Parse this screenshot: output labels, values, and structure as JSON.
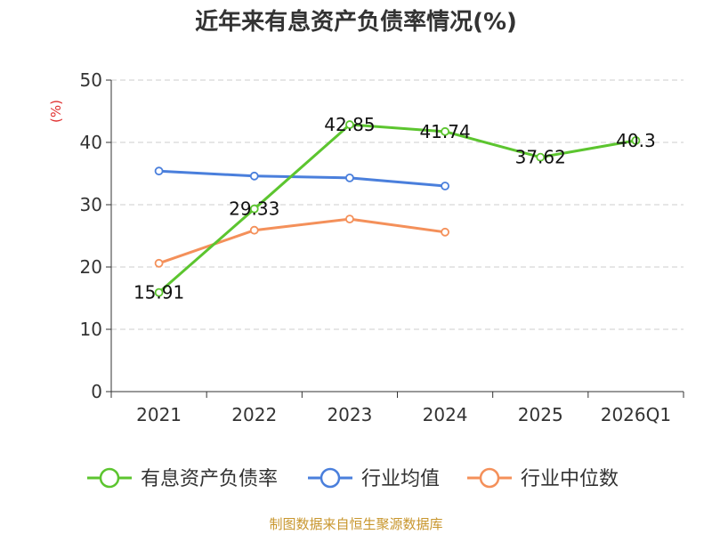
{
  "title": "近年来有息资产负债率情况(%)",
  "source": "制图数据来自恒生聚源数据库",
  "chart_data": {
    "type": "line",
    "title": "近年来有息资产负债率情况(%)",
    "ylabel": "(%)",
    "xlabel": "",
    "categories": [
      "2021",
      "2022",
      "2023",
      "2024",
      "2025",
      "2026Q1"
    ],
    "ylim": [
      0,
      50
    ],
    "yticks": [
      0,
      10,
      20,
      30,
      40,
      50
    ],
    "grid": true,
    "legend_position": "bottom",
    "series": [
      {
        "name": "有息资产负债率",
        "color": "#5cc52f",
        "values": [
          15.91,
          29.33,
          42.85,
          41.74,
          37.62,
          40.3
        ],
        "labels": [
          "15.91",
          "29.33",
          "42.85",
          "41.74",
          "37.62",
          "40.3"
        ]
      },
      {
        "name": "行业均值",
        "color": "#4a7fdc",
        "values": [
          35.4,
          34.6,
          34.3,
          33.0,
          null,
          null
        ]
      },
      {
        "name": "行业中位数",
        "color": "#f4905a",
        "values": [
          20.6,
          25.9,
          27.7,
          25.6,
          null,
          null
        ]
      }
    ]
  }
}
